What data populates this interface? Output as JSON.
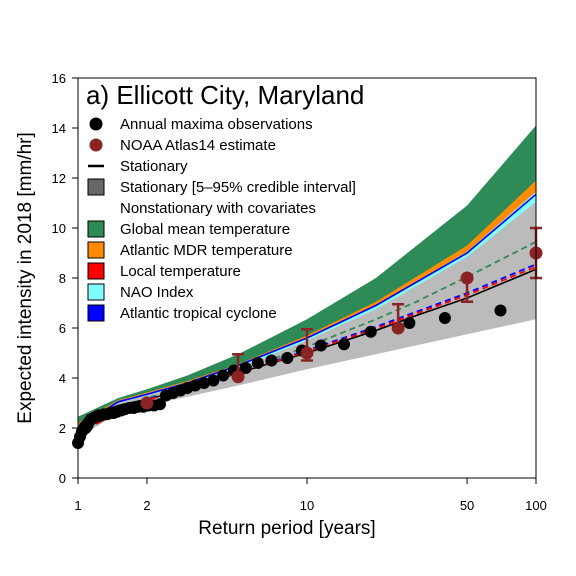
{
  "chart_data": {
    "type": "scatter",
    "title": "a) Ellicott City, Maryland",
    "xlabel": "Return period [years]",
    "ylabel": "Expected intensity in 2018 [mm/hr]",
    "x_scale": "log",
    "xlim": [
      1,
      100
    ],
    "ylim": [
      0,
      16
    ],
    "xticks": [
      1,
      2,
      10,
      50,
      100
    ],
    "xtick_labels": [
      "1",
      "2",
      "10",
      "50",
      "100"
    ],
    "yticks": [
      0,
      2,
      4,
      6,
      8,
      10,
      12,
      14,
      16
    ],
    "ytick_labels": [
      "0",
      "2",
      "4",
      "6",
      "8",
      "10",
      "12",
      "14",
      "16"
    ],
    "grid": false,
    "legend_position": "top-left",
    "legend": [
      {
        "label": "Annual maxima observations",
        "kind": "dot",
        "color": "#000000"
      },
      {
        "label": "NOAA Atlas14 estimate",
        "kind": "dot",
        "color": "#8b2323"
      },
      {
        "label": "Stationary",
        "kind": "line",
        "color": "#000000"
      },
      {
        "label": "Stationary [5–95% credible interval]",
        "kind": "box",
        "color": "#666666"
      },
      {
        "label": "Nonstationary with covariates",
        "kind": "none",
        "color": ""
      },
      {
        "label": "Global mean temperature",
        "kind": "box",
        "color": "#2e8b57"
      },
      {
        "label": "Atlantic MDR temperature",
        "kind": "box",
        "color": "#ff8c00"
      },
      {
        "label": "Local temperature",
        "kind": "box",
        "color": "#ff0000"
      },
      {
        "label": "NAO Index",
        "kind": "box",
        "color": "#7fffff"
      },
      {
        "label": "Atlantic tropical cyclone",
        "kind": "box",
        "color": "#0000ff"
      }
    ],
    "series": [
      {
        "name": "Stationary",
        "type": "line",
        "color": "#000000",
        "dash": "solid",
        "x": [
          1,
          1.02,
          1.1,
          1.2,
          1.5,
          2,
          3,
          5,
          7,
          10,
          20,
          30,
          50,
          100
        ],
        "y": [
          1.8,
          2.15,
          2.45,
          2.6,
          2.9,
          3.15,
          3.55,
          4.2,
          4.6,
          5.0,
          5.9,
          6.5,
          7.2,
          8.35
        ]
      },
      {
        "name": "Stationary [5–95% credible interval]",
        "type": "band",
        "color": "#bbbbbb",
        "x": [
          1,
          1.5,
          2,
          3,
          5,
          10,
          20,
          50,
          100
        ],
        "lower": [
          1.6,
          2.6,
          2.9,
          3.25,
          3.7,
          4.35,
          4.95,
          5.75,
          6.35
        ],
        "upper": [
          2.15,
          3.1,
          3.4,
          3.85,
          4.5,
          5.65,
          6.95,
          9.1,
          11.5
        ]
      },
      {
        "name": "Global mean temperature",
        "type": "band",
        "color": "#2e8b57",
        "x": [
          1,
          1.5,
          2,
          3,
          5,
          10,
          20,
          50,
          100
        ],
        "lower": [
          2.15,
          3.1,
          3.4,
          3.85,
          4.5,
          5.65,
          6.95,
          9.1,
          11.5
        ],
        "upper": [
          2.45,
          3.2,
          3.55,
          4.1,
          4.95,
          6.35,
          8.0,
          10.9,
          14.1
        ]
      },
      {
        "name": "Atlantic MDR temperature",
        "type": "band",
        "color": "#ff8c00",
        "x": [
          1,
          1.5,
          2,
          3,
          5,
          10,
          20,
          50,
          100
        ],
        "lower": [
          2.1,
          3.05,
          3.35,
          3.8,
          4.45,
          5.55,
          6.85,
          9.0,
          11.4
        ],
        "upper": [
          2.2,
          3.12,
          3.42,
          3.88,
          4.55,
          5.7,
          7.05,
          9.3,
          11.9
        ]
      },
      {
        "name": "NAO Index",
        "type": "band",
        "color": "#7fffff",
        "x": [
          1,
          1.5,
          2,
          3,
          5,
          10,
          20,
          50,
          100
        ],
        "lower": [
          2.0,
          3.0,
          3.3,
          3.75,
          4.4,
          5.5,
          6.75,
          8.85,
          11.05
        ],
        "upper": [
          2.12,
          3.08,
          3.38,
          3.84,
          4.5,
          5.62,
          6.9,
          9.05,
          11.45
        ]
      },
      {
        "name": "Atlantic tropical cyclone",
        "type": "line",
        "color": "#0000ff",
        "dash": "solid",
        "x": [
          1,
          1.5,
          2,
          3,
          5,
          10,
          20,
          50,
          100
        ],
        "y": [
          2.05,
          3.05,
          3.35,
          3.8,
          4.5,
          5.6,
          6.9,
          9.0,
          11.35
        ]
      },
      {
        "name": "Global mean temperature (median)",
        "type": "line",
        "color": "#2e8b57",
        "dash": "dashed",
        "x": [
          1,
          2,
          3,
          5,
          7,
          10,
          20,
          30,
          50,
          100
        ],
        "y": [
          1.9,
          3.2,
          3.65,
          4.3,
          4.75,
          5.25,
          6.35,
          7.05,
          8.05,
          9.45
        ]
      },
      {
        "name": "Atlantic tropical cyclone (median)",
        "type": "line",
        "color": "#0000ff",
        "dash": "dashed",
        "x": [
          1,
          2,
          3,
          5,
          7,
          10,
          20,
          30,
          50,
          100
        ],
        "y": [
          1.85,
          3.15,
          3.6,
          4.25,
          4.65,
          5.1,
          6.05,
          6.65,
          7.4,
          8.55
        ]
      },
      {
        "name": "Local temperature (median)",
        "type": "line",
        "color": "#ff0000",
        "dash": "dashed",
        "x": [
          1,
          2,
          3,
          5,
          7,
          10,
          20,
          30,
          50,
          100
        ],
        "y": [
          1.82,
          3.12,
          3.57,
          4.22,
          4.62,
          5.05,
          5.98,
          6.58,
          7.32,
          8.45
        ]
      },
      {
        "name": "Annual maxima observations",
        "type": "scatter",
        "color": "#000000",
        "x": [
          1.0,
          1.02,
          1.04,
          1.06,
          1.08,
          1.1,
          1.12,
          1.14,
          1.17,
          1.2,
          1.23,
          1.26,
          1.3,
          1.34,
          1.38,
          1.43,
          1.48,
          1.54,
          1.6,
          1.67,
          1.75,
          1.83,
          1.93,
          2.03,
          2.15,
          2.28,
          2.42,
          2.6,
          2.8,
          3.0,
          3.25,
          3.55,
          3.9,
          4.3,
          4.8,
          5.4,
          6.1,
          7.0,
          8.2,
          9.5,
          11.5,
          14.5,
          19,
          28,
          40,
          70
        ],
        "y": [
          1.4,
          1.65,
          1.85,
          1.95,
          2.0,
          2.1,
          2.25,
          2.35,
          2.4,
          2.45,
          2.5,
          2.5,
          2.55,
          2.55,
          2.6,
          2.6,
          2.65,
          2.7,
          2.75,
          2.8,
          2.8,
          2.85,
          2.85,
          2.9,
          2.9,
          2.95,
          3.3,
          3.4,
          3.5,
          3.6,
          3.7,
          3.8,
          3.9,
          4.1,
          4.3,
          4.4,
          4.6,
          4.7,
          4.8,
          5.1,
          5.3,
          5.35,
          5.85,
          6.2,
          6.4,
          6.7
        ]
      },
      {
        "name": "NOAA Atlas14 estimate",
        "type": "errorbar",
        "color": "#8b2323",
        "x": [
          2,
          5,
          10,
          25,
          50,
          100
        ],
        "y": [
          3.0,
          4.05,
          5.0,
          6.0,
          8.0,
          9.0
        ],
        "low": [
          3.0,
          4.05,
          4.7,
          6.0,
          7.05,
          8.0
        ],
        "high": [
          3.0,
          4.95,
          5.95,
          6.95,
          8.0,
          10.0
        ]
      }
    ]
  }
}
